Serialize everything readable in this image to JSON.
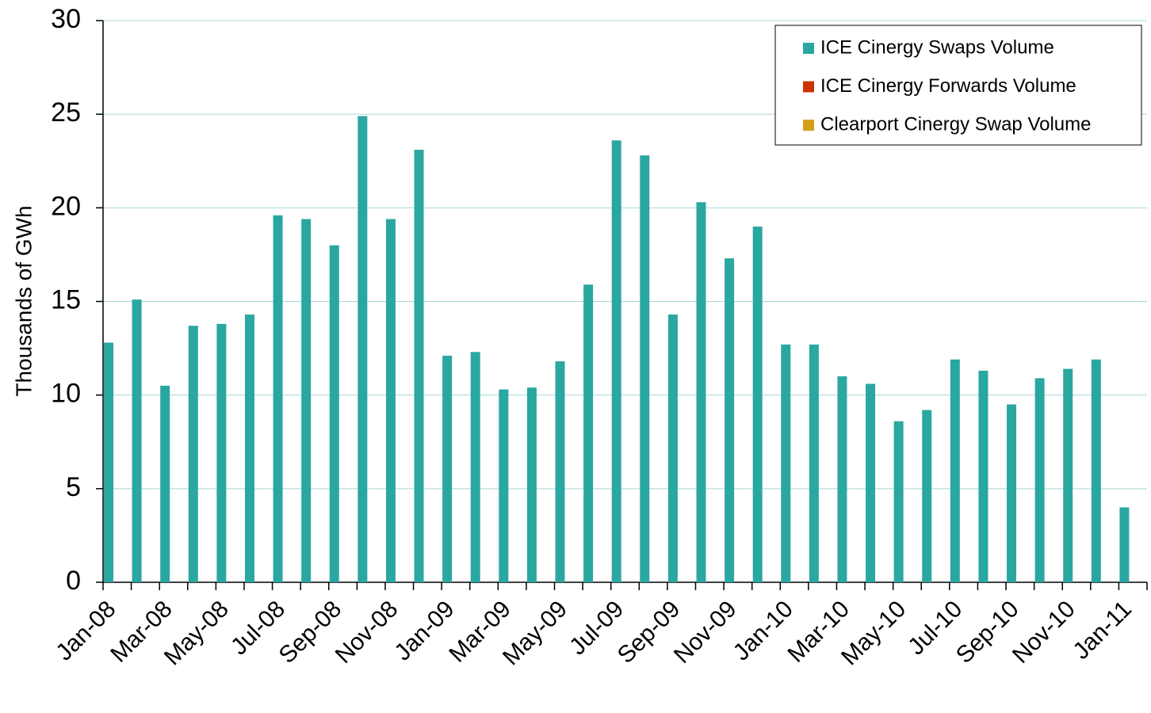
{
  "chart_data": {
    "type": "bar",
    "y_label": "Thousands of GWh",
    "categories": [
      "Jan-08",
      null,
      "Mar-08",
      null,
      "May-08",
      null,
      "Jul-08",
      null,
      "Sep-08",
      null,
      "Nov-08",
      null,
      "Jan-09",
      null,
      "Mar-09",
      null,
      "May-09",
      null,
      "Jul-09",
      null,
      "Sep-09",
      null,
      "Nov-09",
      null,
      "Jan-10",
      null,
      "Mar-10",
      null,
      "May-10",
      null,
      "Jul-10",
      null,
      "Sep-10",
      null,
      "Nov-10",
      null,
      "Jan-11"
    ],
    "series": [
      {
        "name": "ICE Cinergy Swaps Volume",
        "color": "#2aa7a1",
        "values": [
          12.8,
          15.1,
          10.5,
          13.7,
          13.8,
          14.3,
          19.6,
          19.4,
          18.0,
          24.9,
          19.4,
          23.1,
          12.1,
          12.3,
          10.3,
          10.4,
          11.8,
          15.9,
          23.6,
          22.8,
          14.3,
          20.3,
          17.3,
          19.0,
          12.7,
          12.7,
          11.0,
          10.6,
          8.6,
          9.2,
          11.9,
          11.3,
          9.5,
          10.9,
          11.4,
          11.9,
          4.0
        ]
      },
      {
        "name": "ICE Cinergy Forwards Volume",
        "color": "#cc3300",
        "values": [
          0,
          0,
          0,
          0,
          0,
          0,
          0,
          0,
          0,
          0,
          0,
          0,
          0,
          0,
          0,
          0,
          0,
          0,
          0,
          0,
          0,
          0,
          0,
          0,
          0,
          0,
          0,
          0,
          0,
          0,
          0,
          0,
          0,
          0,
          0,
          0,
          0
        ]
      },
      {
        "name": "Clearport Cinergy Swap Volume",
        "color": "#d4a017",
        "values": [
          0,
          0,
          0,
          0,
          0,
          0,
          0,
          0,
          0,
          0,
          0,
          0,
          0,
          0,
          0,
          0,
          0,
          0,
          0,
          0,
          0,
          0,
          0,
          0,
          0,
          0,
          0,
          0,
          0,
          0,
          0,
          0,
          0,
          0,
          0,
          0,
          0
        ]
      }
    ],
    "ylim": [
      0,
      30
    ],
    "yticks": [
      0,
      5,
      10,
      15,
      20,
      25,
      30
    ],
    "grid": true,
    "legend": "upper right"
  }
}
